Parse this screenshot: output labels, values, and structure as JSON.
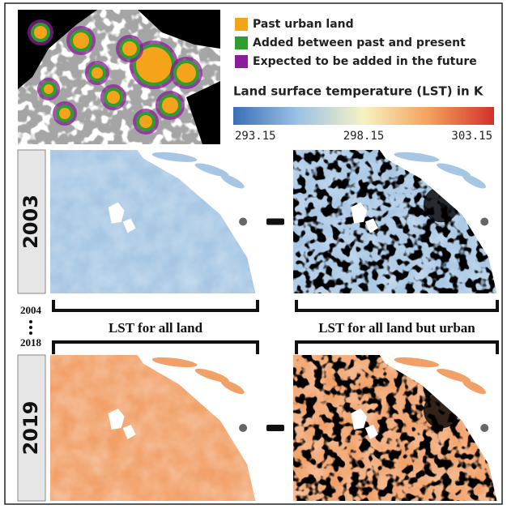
{
  "legend": {
    "items": [
      {
        "label": "Past urban land",
        "color": "#f5a31a"
      },
      {
        "label": "Added between past and present",
        "color": "#2e9e2e"
      },
      {
        "label": "Expected to be added in the future",
        "color": "#8a1e9a"
      }
    ]
  },
  "colorbar": {
    "title": "Land surface temperature (LST) in K",
    "ticks": [
      293.15,
      298.15,
      303.15
    ]
  },
  "rows": [
    {
      "year": "2003"
    },
    {
      "year": "2019"
    }
  ],
  "interval": {
    "start": "2004",
    "end": "2018"
  },
  "columns": [
    "LST for all land",
    "LST for all land but urban"
  ]
}
